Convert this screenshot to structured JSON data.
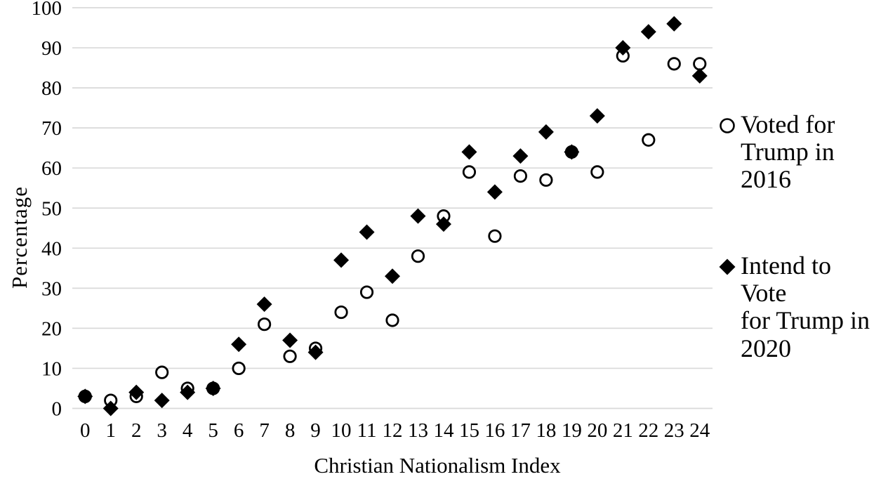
{
  "chart": {
    "y_axis_label": "Percentage",
    "x_axis_label": "Christian Nationalism Index"
  },
  "legend": {
    "items": [
      {
        "icon": "open-circle-marker",
        "label": "Voted for\nTrump in\n2016"
      },
      {
        "icon": "filled-diamond-marker",
        "label": "Intend to Vote\nfor Trump in\n2020"
      }
    ]
  },
  "chart_data": {
    "type": "scatter",
    "title": "",
    "xlabel": "Christian Nationalism Index",
    "ylabel": "Percentage",
    "x": [
      0,
      1,
      2,
      3,
      4,
      5,
      6,
      7,
      8,
      9,
      10,
      11,
      12,
      13,
      14,
      15,
      16,
      17,
      18,
      19,
      20,
      21,
      22,
      23,
      24
    ],
    "series": [
      {
        "name": "Voted for Trump in 2016",
        "marker": "open-circle",
        "values": [
          3,
          2,
          3,
          9,
          5,
          5,
          10,
          21,
          13,
          15,
          24,
          29,
          22,
          38,
          48,
          59,
          43,
          58,
          57,
          64,
          59,
          88,
          67,
          86,
          86
        ]
      },
      {
        "name": "Intend to Vote for Trump in 2020",
        "marker": "filled-diamond",
        "values": [
          3,
          0,
          4,
          2,
          4,
          5,
          16,
          26,
          17,
          14,
          37,
          44,
          33,
          48,
          46,
          64,
          54,
          63,
          69,
          64,
          73,
          90,
          94,
          96,
          83
        ]
      }
    ],
    "ylim": [
      0,
      100
    ],
    "ytick_step": 10,
    "yticks": [
      0,
      10,
      20,
      30,
      40,
      50,
      60,
      70,
      80,
      90,
      100
    ],
    "grid": "horizontal",
    "legend_position": "right",
    "colors": {
      "marker": "#000000",
      "gridline": "#d9d9d9",
      "background": "#ffffff"
    }
  }
}
